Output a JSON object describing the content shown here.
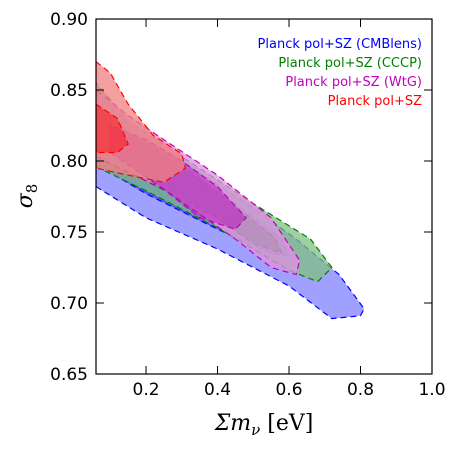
{
  "chart_data": {
    "type": "contour",
    "xlabel": "Σm_ν [eV]",
    "xlabel_main": "Σm",
    "xlabel_sub": "ν",
    "xlabel_unit": "[eV]",
    "ylabel": "σ_8",
    "ylabel_main": "σ",
    "ylabel_sub": "8",
    "xlim": [
      0.06,
      1.0
    ],
    "ylim": [
      0.65,
      0.9
    ],
    "x_ticks": [
      0.2,
      0.4,
      0.6,
      0.8,
      1.0
    ],
    "x_tick_labels": [
      "0.2",
      "0.4",
      "0.6",
      "0.8",
      "1.0"
    ],
    "y_ticks": [
      0.65,
      0.7,
      0.75,
      0.8,
      0.85,
      0.9
    ],
    "y_tick_labels": [
      "0.65",
      "0.70",
      "0.75",
      "0.80",
      "0.85",
      "0.90"
    ],
    "grid": false,
    "legend_position": "top-right",
    "series": [
      {
        "name": "Planck pol+SZ (CMBlens)",
        "color": "#0000ff",
        "fill": "#8080ff",
        "outer": [
          [
            0.06,
            0.782
          ],
          [
            0.2,
            0.76
          ],
          [
            0.4,
            0.738
          ],
          [
            0.6,
            0.712
          ],
          [
            0.72,
            0.689
          ],
          [
            0.8,
            0.691
          ],
          [
            0.81,
            0.696
          ],
          [
            0.74,
            0.72
          ],
          [
            0.62,
            0.745
          ],
          [
            0.5,
            0.767
          ],
          [
            0.3,
            0.8
          ],
          [
            0.15,
            0.826
          ],
          [
            0.06,
            0.848
          ]
        ],
        "inner": [
          [
            0.06,
            0.798
          ],
          [
            0.2,
            0.777
          ],
          [
            0.4,
            0.752
          ],
          [
            0.55,
            0.735
          ],
          [
            0.6,
            0.733
          ],
          [
            0.58,
            0.745
          ],
          [
            0.45,
            0.77
          ],
          [
            0.3,
            0.795
          ],
          [
            0.15,
            0.818
          ],
          [
            0.06,
            0.835
          ]
        ]
      },
      {
        "name": "Planck pol+SZ (CCCP)",
        "color": "#008000",
        "fill": "#80c080",
        "outer": [
          [
            0.06,
            0.796
          ],
          [
            0.2,
            0.779
          ],
          [
            0.4,
            0.753
          ],
          [
            0.6,
            0.723
          ],
          [
            0.68,
            0.715
          ],
          [
            0.72,
            0.725
          ],
          [
            0.66,
            0.745
          ],
          [
            0.5,
            0.77
          ],
          [
            0.3,
            0.803
          ],
          [
            0.15,
            0.828
          ],
          [
            0.06,
            0.855
          ]
        ],
        "inner": [
          [
            0.06,
            0.803
          ],
          [
            0.2,
            0.786
          ],
          [
            0.4,
            0.76
          ],
          [
            0.5,
            0.742
          ],
          [
            0.58,
            0.735
          ],
          [
            0.56,
            0.746
          ],
          [
            0.45,
            0.768
          ],
          [
            0.3,
            0.797
          ],
          [
            0.15,
            0.82
          ],
          [
            0.06,
            0.84
          ]
        ]
      },
      {
        "name": "Planck pol+SZ (WtG)",
        "color": "#c000c0",
        "fill": "#e090e0",
        "outer": [
          [
            0.06,
            0.803
          ],
          [
            0.25,
            0.78
          ],
          [
            0.45,
            0.745
          ],
          [
            0.55,
            0.725
          ],
          [
            0.62,
            0.72
          ],
          [
            0.63,
            0.73
          ],
          [
            0.55,
            0.76
          ],
          [
            0.4,
            0.79
          ],
          [
            0.25,
            0.815
          ],
          [
            0.15,
            0.832
          ],
          [
            0.06,
            0.85
          ]
        ],
        "inner": [
          [
            0.1,
            0.806
          ],
          [
            0.25,
            0.78
          ],
          [
            0.35,
            0.76
          ],
          [
            0.45,
            0.752
          ],
          [
            0.48,
            0.76
          ],
          [
            0.4,
            0.782
          ],
          [
            0.3,
            0.8
          ],
          [
            0.2,
            0.815
          ],
          [
            0.1,
            0.825
          ]
        ]
      },
      {
        "name": "Planck pol+SZ",
        "color": "#ff0000",
        "fill": "#f08080",
        "outer": [
          [
            0.06,
            0.87
          ],
          [
            0.1,
            0.862
          ],
          [
            0.15,
            0.84
          ],
          [
            0.22,
            0.818
          ],
          [
            0.3,
            0.805
          ],
          [
            0.31,
            0.795
          ],
          [
            0.25,
            0.785
          ],
          [
            0.15,
            0.79
          ],
          [
            0.06,
            0.795
          ]
        ],
        "inner": [
          [
            0.06,
            0.84
          ],
          [
            0.12,
            0.83
          ],
          [
            0.15,
            0.812
          ],
          [
            0.12,
            0.806
          ],
          [
            0.06,
            0.806
          ]
        ]
      }
    ]
  }
}
